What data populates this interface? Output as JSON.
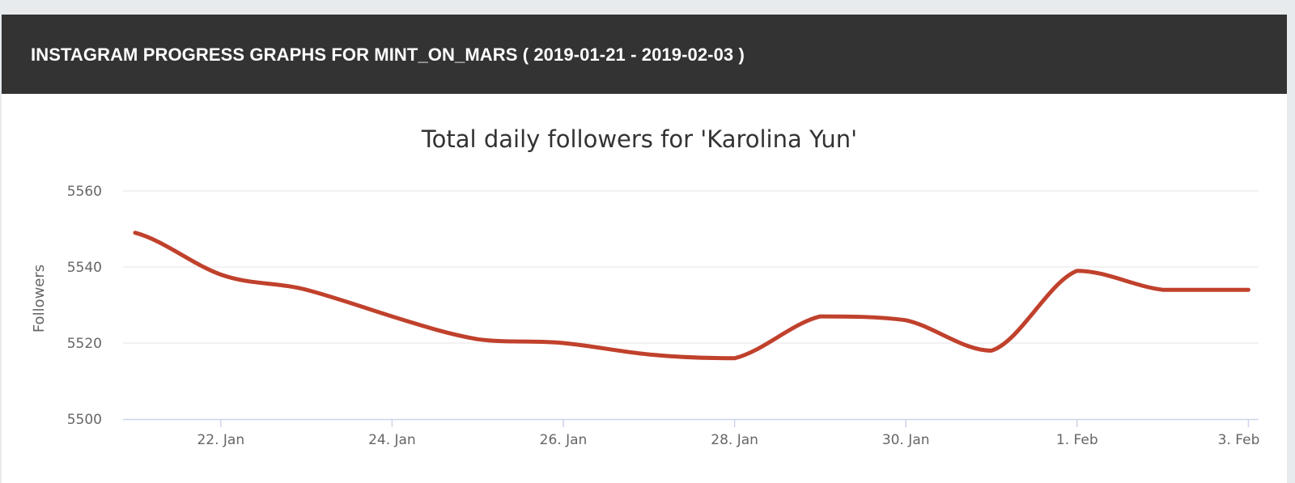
{
  "header": {
    "title": "INSTAGRAM PROGRESS GRAPHS FOR MINT_ON_MARS ( 2019-01-21 - 2019-02-03 )"
  },
  "colors": {
    "header_bg": "#333333",
    "line": "#c0412c",
    "grid": "#e6e6e6",
    "axis": "#ccd6eb"
  },
  "chart_data": {
    "type": "line",
    "title": "Total daily followers for 'Karolina Yun'",
    "xlabel": "",
    "ylabel": "Followers",
    "ylim": [
      5500,
      5560
    ],
    "yticks": [
      "5500",
      "5520",
      "5540",
      "5560"
    ],
    "xticks": [
      "22. Jan",
      "24. Jan",
      "26. Jan",
      "28. Jan",
      "30. Jan",
      "1. Feb",
      "3. Feb"
    ],
    "grid": true,
    "legend": "none",
    "series": [
      {
        "x": [
          "2019-01-21",
          "2019-01-22",
          "2019-01-23",
          "2019-01-24",
          "2019-01-25",
          "2019-01-26",
          "2019-01-27",
          "2019-01-28",
          "2019-01-29",
          "2019-01-30",
          "2019-01-31",
          "2019-02-01",
          "2019-02-02",
          "2019-02-03"
        ],
        "values": [
          5549,
          5538,
          5534,
          5527,
          5521,
          5520,
          5517,
          5516,
          5527,
          5526,
          5518,
          5539,
          5534,
          5534
        ]
      }
    ]
  }
}
